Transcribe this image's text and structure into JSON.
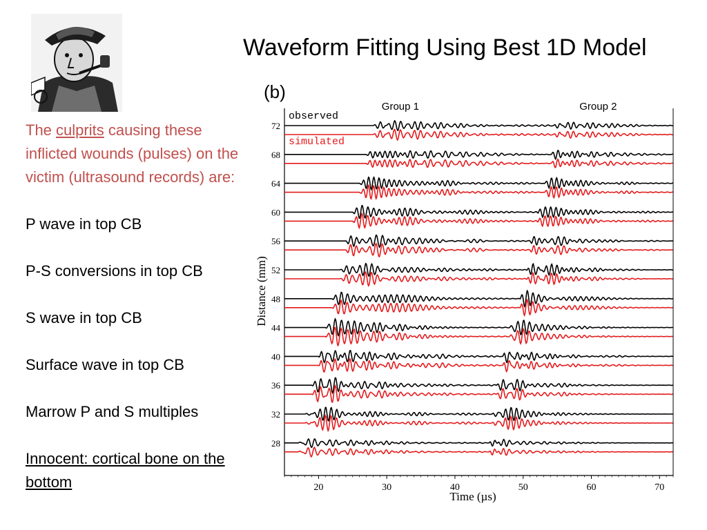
{
  "slide": {
    "title": "Waveform Fitting Using Best 1D Model"
  },
  "left_text": {
    "intro_before": "The ",
    "intro_underlined": "culprits",
    "intro_after": " causing these inflicted wounds (pulses) on the victim (ultrasound records) are:",
    "items": [
      "P wave in top CB",
      "P-S conversions in top CB",
      "S wave in top CB",
      "Surface wave in top CB",
      "Marrow P and S multiples"
    ],
    "innocent": "Innocent: cortical bone on the bottom"
  },
  "images": {
    "detective_icon": "detective-cartoon-icon"
  },
  "colors": {
    "intro_text": "#c0504d",
    "observed": "#000000",
    "simulated": "#e41a1c"
  },
  "chart_data": {
    "type": "line",
    "panel_label": "(b)",
    "xlabel": "Time (µs)",
    "ylabel": "Distance (mm)",
    "xlim": [
      15,
      72
    ],
    "xticks": [
      20,
      30,
      40,
      50,
      60,
      70
    ],
    "legend": [
      "observed",
      "simulated"
    ],
    "legend_position": "top-left",
    "annotations": [
      {
        "text": "Group 1",
        "x": 32
      },
      {
        "text": "Group 2",
        "x": 61
      }
    ],
    "distances": [
      72,
      68,
      64,
      60,
      56,
      52,
      48,
      44,
      40,
      36,
      32,
      28
    ],
    "series": [
      {
        "name": "observed",
        "color": "#000000"
      },
      {
        "name": "simulated",
        "color": "#e41a1c"
      }
    ],
    "group1_onset_us": [
      28,
      27,
      26,
      25,
      24,
      23,
      22,
      21,
      20,
      19,
      18,
      17
    ],
    "group2_onset_us": [
      54.5,
      54,
      53,
      52,
      51,
      50.5,
      49.5,
      48,
      47,
      46,
      45.5,
      45
    ]
  }
}
